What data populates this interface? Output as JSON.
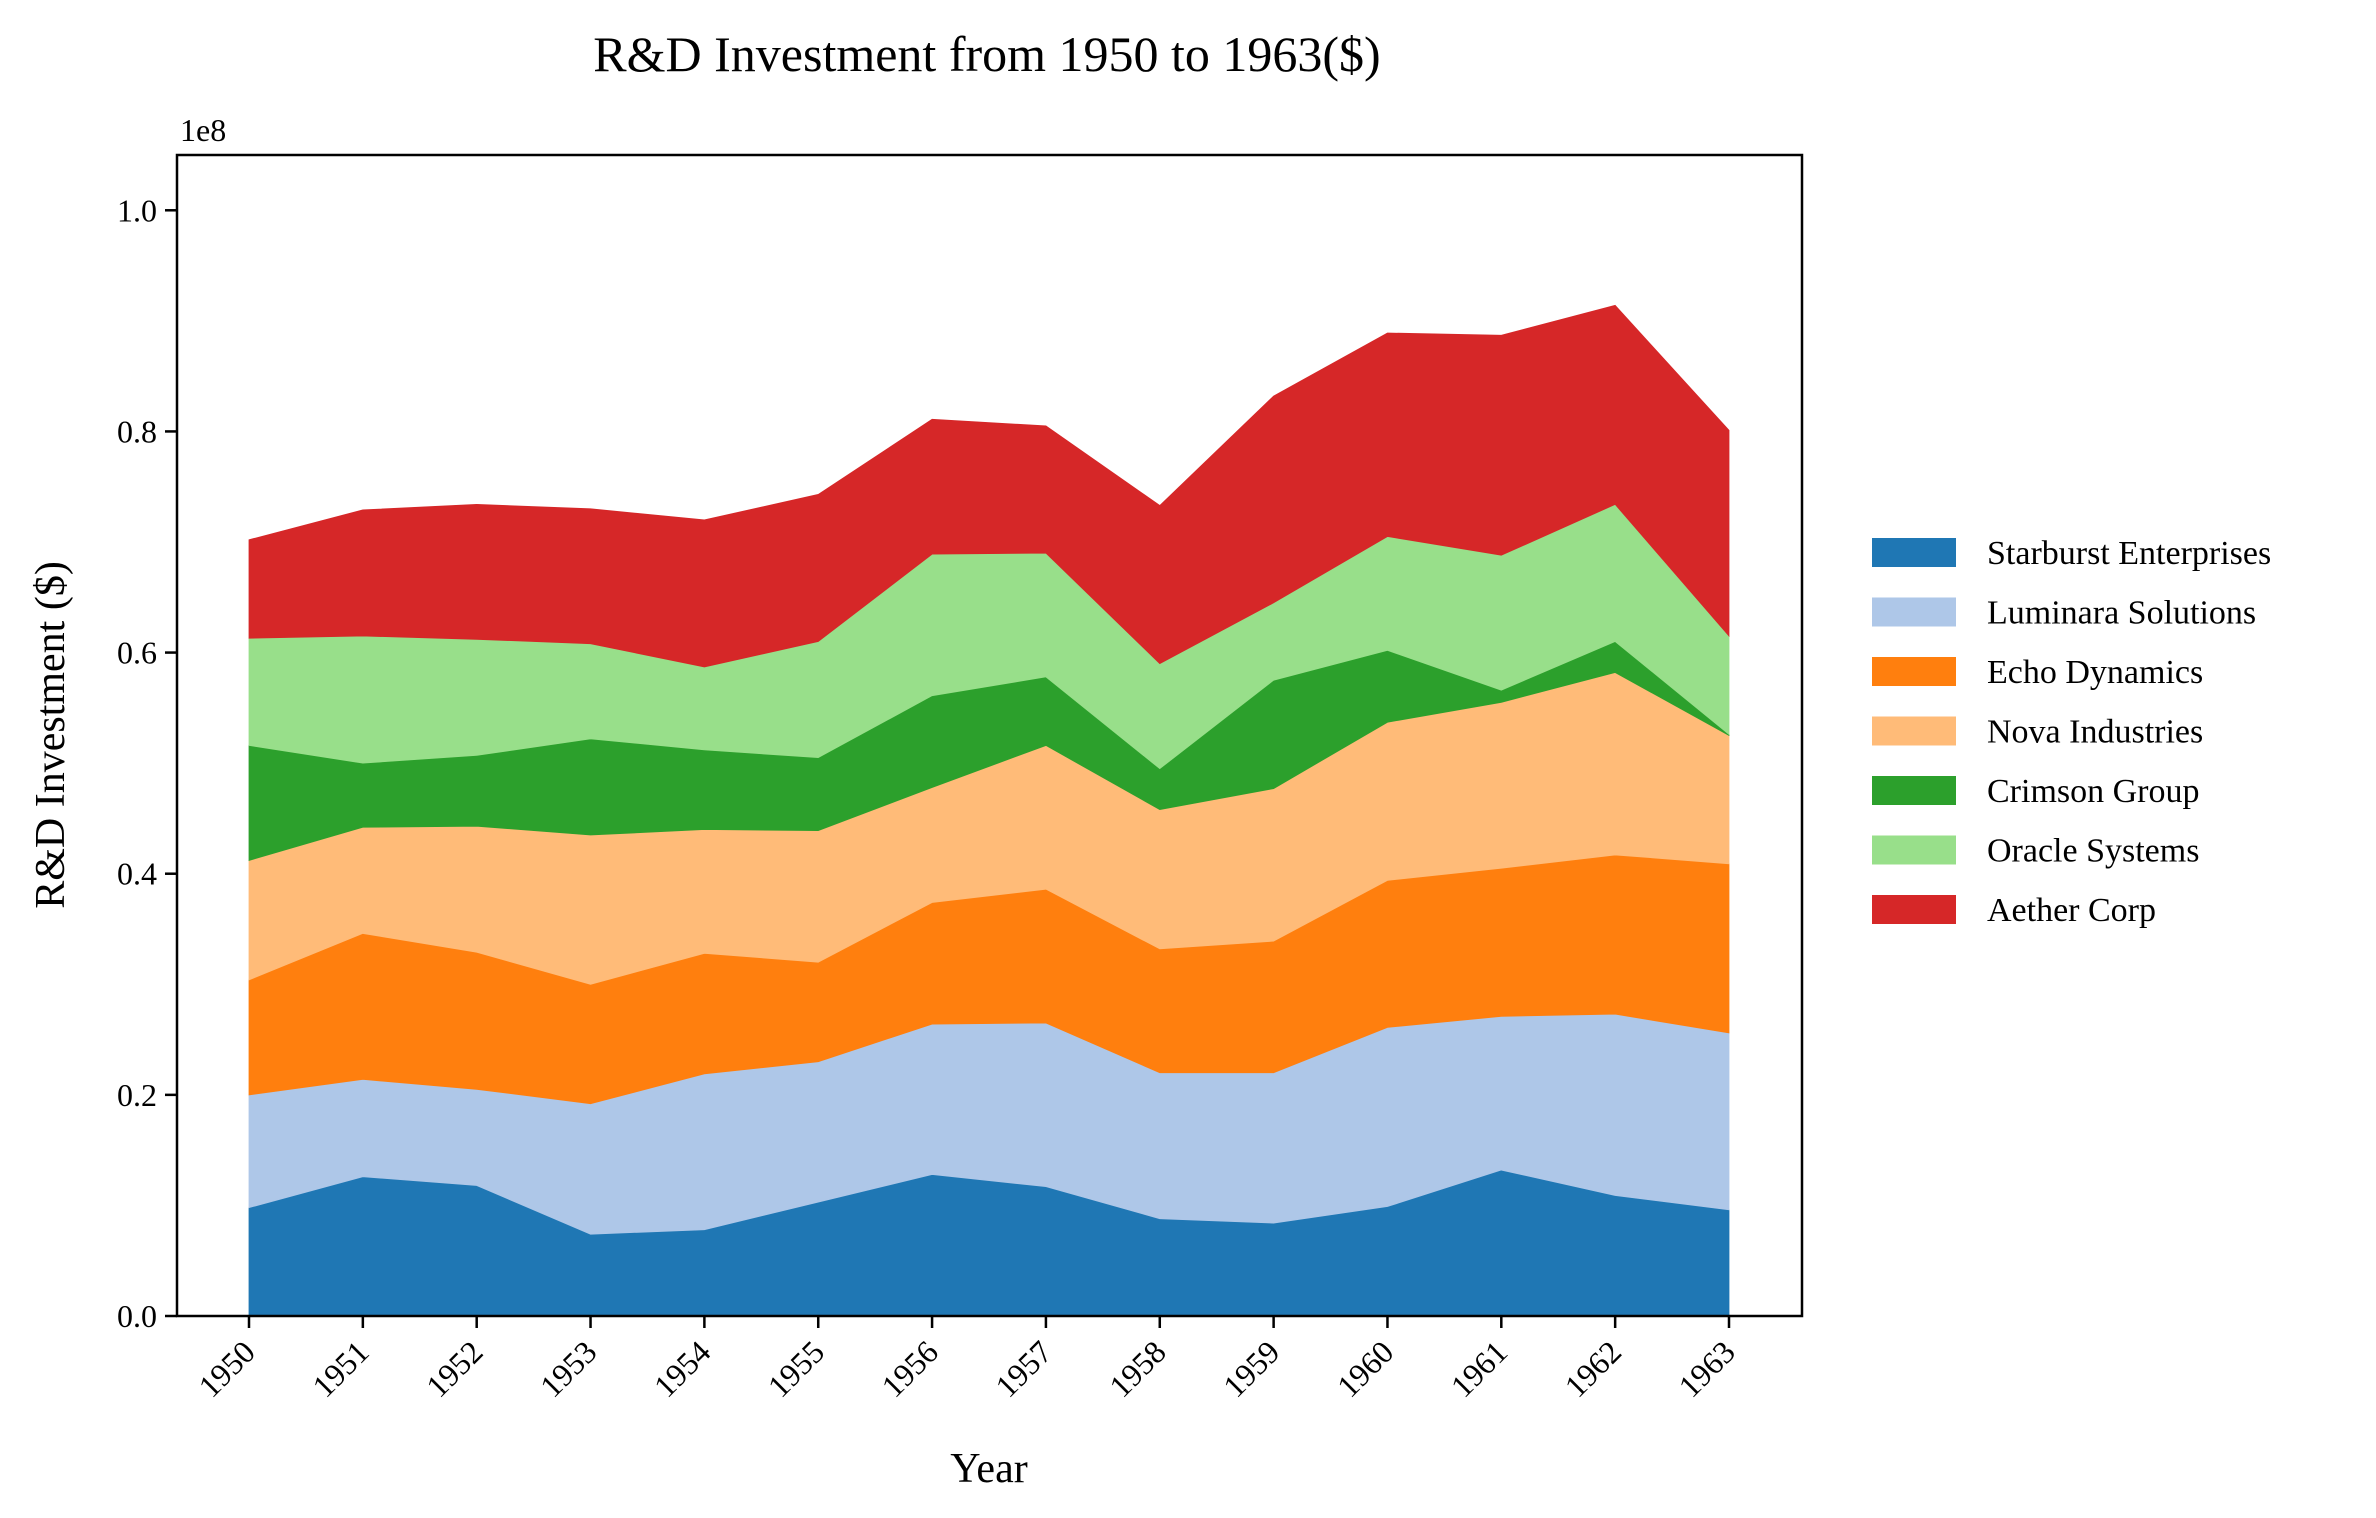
{
  "chart_data": {
    "type": "area",
    "stacked": true,
    "title": "R&D Investment from 1950 to 1963($)",
    "xlabel": "Year",
    "ylabel": "R&D Investment ($)",
    "y_offset_label": "1e8",
    "ylim": [
      0,
      105000000
    ],
    "yticks": [
      0,
      20000000,
      40000000,
      60000000,
      80000000,
      100000000
    ],
    "ytick_labels": [
      "0.0",
      "0.2",
      "0.4",
      "0.6",
      "0.8",
      "1.0"
    ],
    "x": [
      "1950",
      "1951",
      "1952",
      "1953",
      "1954",
      "1955",
      "1956",
      "1957",
      "1958",
      "1959",
      "1960",
      "1961",
      "1962",
      "1963"
    ],
    "grid": false,
    "legend_position": "right",
    "series": [
      {
        "name": "Starburst Enterprises",
        "color": "#1f77b4",
        "values": [
          9800000,
          12600000,
          11800000,
          7400000,
          7800000,
          10300000,
          12800000,
          11700000,
          8800000,
          8400000,
          9900000,
          13200000,
          10900000,
          9600000
        ]
      },
      {
        "name": "Luminara Solutions",
        "color": "#aec7e8",
        "values": [
          10200000,
          8800000,
          8700000,
          11800000,
          14100000,
          12700000,
          13600000,
          14800000,
          13200000,
          13600000,
          16200000,
          13900000,
          16400000,
          16000000
        ]
      },
      {
        "name": "Echo Dynamics",
        "color": "#ff7f0e",
        "values": [
          10400000,
          13200000,
          12400000,
          10800000,
          10900000,
          9000000,
          11000000,
          12100000,
          11200000,
          11900000,
          13300000,
          13400000,
          14400000,
          15300000
        ]
      },
      {
        "name": "Nova Industries",
        "color": "#ffbb78",
        "values": [
          10800000,
          9600000,
          11400000,
          13500000,
          11200000,
          11900000,
          10400000,
          13000000,
          12600000,
          13800000,
          14300000,
          15000000,
          16500000,
          11600000
        ]
      },
      {
        "name": "Crimson Group",
        "color": "#2ca02c",
        "values": [
          10400000,
          5800000,
          6400000,
          8700000,
          7200000,
          6600000,
          8300000,
          6200000,
          3700000,
          9800000,
          6500000,
          1100000,
          2800000,
          100000
        ]
      },
      {
        "name": "Oracle Systems",
        "color": "#98df8a",
        "values": [
          9700000,
          11500000,
          10500000,
          8600000,
          7500000,
          10500000,
          12800000,
          11200000,
          9500000,
          7000000,
          10300000,
          12200000,
          12400000,
          8900000
        ]
      },
      {
        "name": "Aether Corp",
        "color": "#d62728",
        "values": [
          8900000,
          11400000,
          12200000,
          12200000,
          13300000,
          13300000,
          12200000,
          11500000,
          14300000,
          18700000,
          18400000,
          19900000,
          18000000,
          18600000
        ]
      }
    ]
  }
}
